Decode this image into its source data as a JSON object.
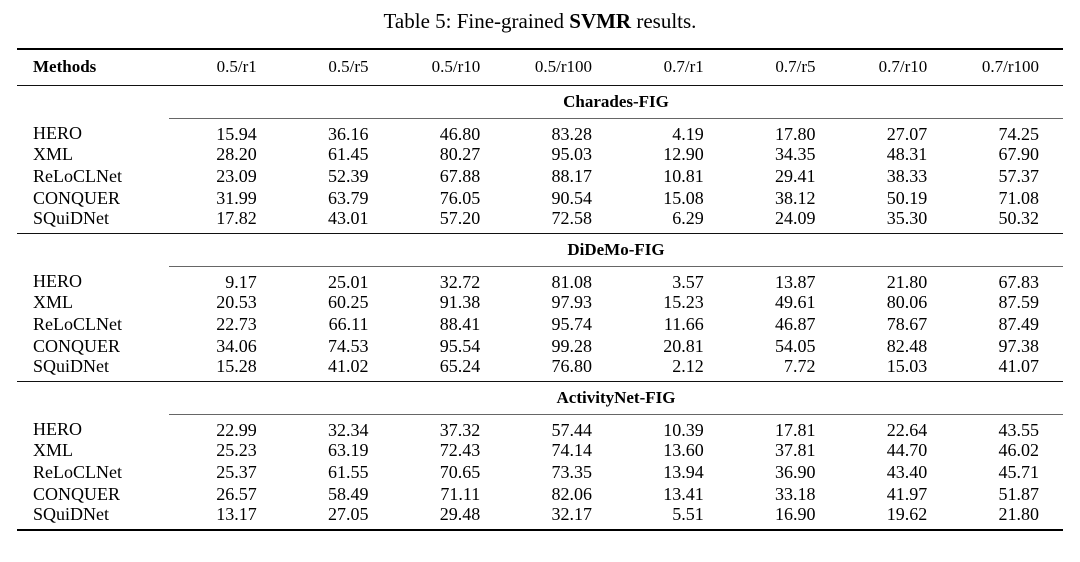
{
  "caption": {
    "prefix": "Table 5: Fine-grained ",
    "keyword": "SVMR",
    "suffix": " results."
  },
  "table": {
    "columns": [
      "Methods",
      "0.5/r1",
      "0.5/r5",
      "0.5/r10",
      "0.5/r100",
      "0.7/r1",
      "0.7/r5",
      "0.7/r10",
      "0.7/r100"
    ],
    "sections": [
      {
        "name": "Charades-FIG",
        "rows": [
          {
            "method": "HERO",
            "values": [
              "15.94",
              "36.16",
              "46.80",
              "83.28",
              "4.19",
              "17.80",
              "27.07",
              "74.25"
            ]
          },
          {
            "method": "XML",
            "values": [
              "28.20",
              "61.45",
              "80.27",
              "95.03",
              "12.90",
              "34.35",
              "48.31",
              "67.90"
            ]
          },
          {
            "method": "ReLoCLNet",
            "values": [
              "23.09",
              "52.39",
              "67.88",
              "88.17",
              "10.81",
              "29.41",
              "38.33",
              "57.37"
            ]
          },
          {
            "method": "CONQUER",
            "values": [
              "31.99",
              "63.79",
              "76.05",
              "90.54",
              "15.08",
              "38.12",
              "50.19",
              "71.08"
            ]
          },
          {
            "method": "SQuiDNet",
            "values": [
              "17.82",
              "43.01",
              "57.20",
              "72.58",
              "6.29",
              "24.09",
              "35.30",
              "50.32"
            ]
          }
        ]
      },
      {
        "name": "DiDeMo-FIG",
        "rows": [
          {
            "method": "HERO",
            "values": [
              "9.17",
              "25.01",
              "32.72",
              "81.08",
              "3.57",
              "13.87",
              "21.80",
              "67.83"
            ]
          },
          {
            "method": "XML",
            "values": [
              "20.53",
              "60.25",
              "91.38",
              "97.93",
              "15.23",
              "49.61",
              "80.06",
              "87.59"
            ]
          },
          {
            "method": "ReLoCLNet",
            "values": [
              "22.73",
              "66.11",
              "88.41",
              "95.74",
              "11.66",
              "46.87",
              "78.67",
              "87.49"
            ]
          },
          {
            "method": "CONQUER",
            "values": [
              "34.06",
              "74.53",
              "95.54",
              "99.28",
              "20.81",
              "54.05",
              "82.48",
              "97.38"
            ]
          },
          {
            "method": "SQuiDNet",
            "values": [
              "15.28",
              "41.02",
              "65.24",
              "76.80",
              "2.12",
              "7.72",
              "15.03",
              "41.07"
            ]
          }
        ]
      },
      {
        "name": "ActivityNet-FIG",
        "rows": [
          {
            "method": "HERO",
            "values": [
              "22.99",
              "32.34",
              "37.32",
              "57.44",
              "10.39",
              "17.81",
              "22.64",
              "43.55"
            ]
          },
          {
            "method": "XML",
            "values": [
              "25.23",
              "63.19",
              "72.43",
              "74.14",
              "13.60",
              "37.81",
              "44.70",
              "46.02"
            ]
          },
          {
            "method": "ReLoCLNet",
            "values": [
              "25.37",
              "61.55",
              "70.65",
              "73.35",
              "13.94",
              "36.90",
              "43.40",
              "45.71"
            ]
          },
          {
            "method": "CONQUER",
            "values": [
              "26.57",
              "58.49",
              "71.11",
              "82.06",
              "13.41",
              "33.18",
              "41.97",
              "51.87"
            ]
          },
          {
            "method": "SQuiDNet",
            "values": [
              "13.17",
              "27.05",
              "29.48",
              "32.17",
              "5.51",
              "16.90",
              "19.62",
              "21.80"
            ]
          }
        ]
      }
    ]
  }
}
